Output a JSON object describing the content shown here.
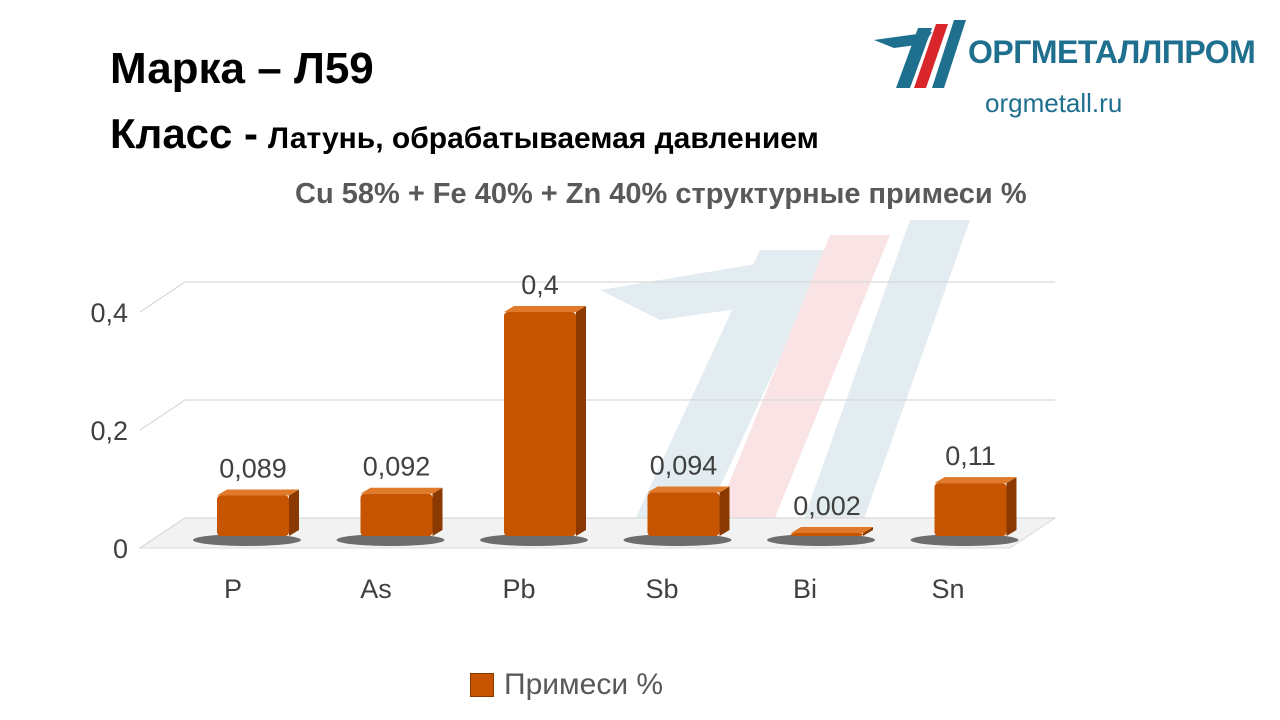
{
  "header": {
    "title": "Марка – Л59",
    "subtitle_key": "Класс -",
    "subtitle_value": "Латунь, обрабатываемая давлением"
  },
  "brand": {
    "name": "ОРГМЕТАЛЛПРОМ",
    "url": "orgmetall.ru"
  },
  "chart_data": {
    "type": "bar",
    "title": "Cu 58% + Fe 40% + Zn 40% структурные примеси %",
    "categories": [
      "P",
      "As",
      "Pb",
      "Sb",
      "Bi",
      "Sn"
    ],
    "series": [
      {
        "name": "Примеси %",
        "values": [
          0.089,
          0.092,
          0.4,
          0.094,
          0.002,
          0.11
        ],
        "labels": [
          "0,089",
          "0,092",
          "0,4",
          "0,094",
          "0,002",
          "0,11"
        ]
      }
    ],
    "yticks": [
      "0",
      "0,2",
      "0,4"
    ],
    "ylim": [
      0,
      0.4
    ],
    "grid": true,
    "legend_position": "bottom",
    "colors": {
      "bar": "#c65400",
      "bar_top": "#e07a2a",
      "bar_side": "#8a3a00",
      "grid": "#d9d9d9",
      "text": "#404040",
      "brand": "#1f6f8f",
      "brand_accent": "#d9262b"
    }
  }
}
